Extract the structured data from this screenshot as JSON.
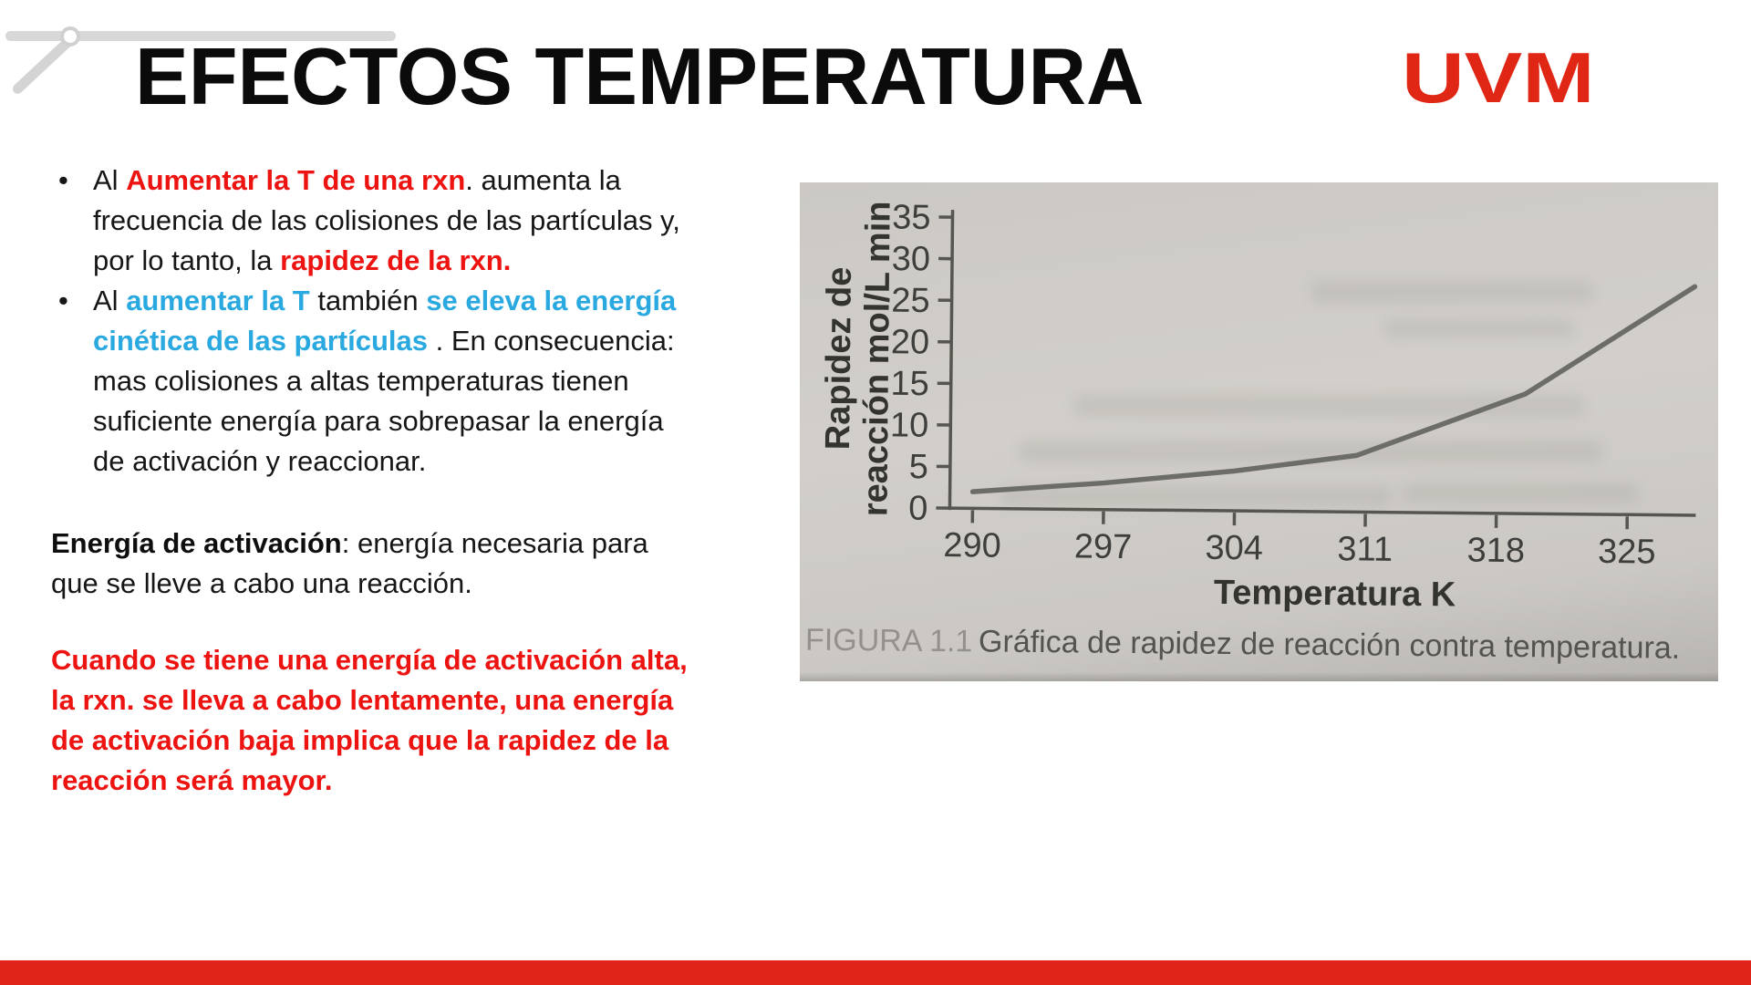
{
  "slide": {
    "title": "EFECTOS TEMPERATURA",
    "logo": "UVM",
    "colors": {
      "text_red": "#ec1310",
      "text_blue": "#29a9e0",
      "footer_red": "#e0241a",
      "logo_red": "#e02615"
    }
  },
  "content": {
    "bullet_char": "•",
    "bullet1": {
      "l1a": "Al ",
      "l1b": "Aumentar la T de una rxn",
      "l1c": ". aumenta la",
      "l2": "frecuencia de las colisiones de las partículas y,",
      "l3a": "por lo tanto, la ",
      "l3b": "rapidez de la rxn."
    },
    "bullet2": {
      "l1a": "Al ",
      "l1b": "aumentar la T",
      "l1c": " también ",
      "l1d": "se eleva la energía",
      "l2a": "cinética de las partículas",
      "l2b": " . En consecuencia:",
      "l3": "mas colisiones a altas temperaturas tienen",
      "l4": "suficiente energía para sobrepasar la energía",
      "l5": "de activación y reaccionar."
    },
    "para1": {
      "l1a": "Energía de activación",
      "l1b": ": energía necesaria para",
      "l2": "que se lleve a cabo una reacción."
    },
    "para2": {
      "l1": "Cuando se tiene una energía de activación alta,",
      "l2": "la rxn. se lleva a cabo lentamente, una energía",
      "l3": "de activación baja implica que la rapidez de la",
      "l4": "reacción será mayor."
    }
  },
  "chart_data": {
    "type": "line",
    "title": "",
    "xlabel": "Temperatura K",
    "ylabel": "Rapidez de reacción mol/L min",
    "ylabel_lines": [
      "Rapidez de",
      "reacción mol/L min"
    ],
    "x_ticks": [
      290,
      297,
      304,
      311,
      318,
      325
    ],
    "y_ticks": [
      0,
      5,
      10,
      15,
      20,
      25,
      30,
      35
    ],
    "xlim": [
      288,
      329
    ],
    "ylim": [
      0,
      35
    ],
    "grid": false,
    "legend": false,
    "points": [
      [
        290,
        2
      ],
      [
        297,
        3.2
      ],
      [
        304,
        4.8
      ],
      [
        310.5,
        6.8
      ],
      [
        319.5,
        14.4
      ],
      [
        328.5,
        27.5
      ]
    ],
    "line_color": "#6c6c68",
    "caption_label": "FIGURA 1.1",
    "caption_text": "Gráfica de rapidez de reacción contra temperatura."
  }
}
